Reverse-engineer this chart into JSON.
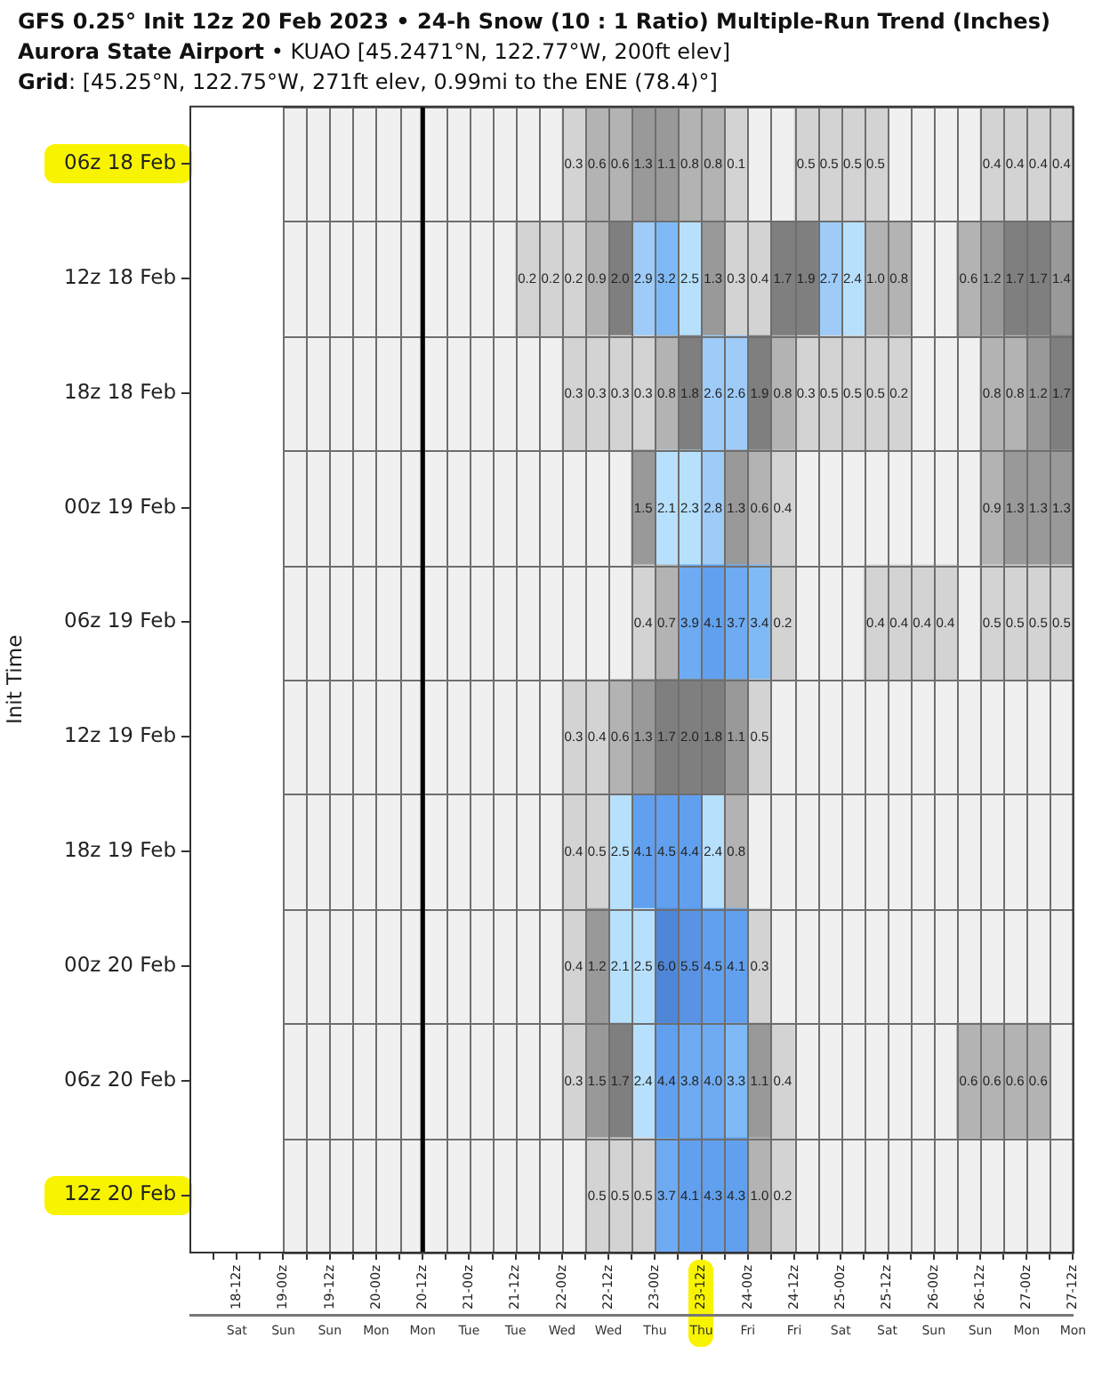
{
  "chart_data": {
    "type": "heatmap",
    "title": "GFS 0.25° Init 12z 20 Feb 2023 • 24-h Snow (10 : 1 Ratio) Multiple-Run Trend (Inches)",
    "subtitle": "Aurora State Airport • KUAO [45.2471°N, 122.77°W, 200ft elev]\nGrid: [45.25°N, 122.75°W, 271ft elev, 0.99mi to the ENE (78.4)°]",
    "annotations": [
      "Sat",
      "Sun",
      "Sun",
      "Mon",
      "Mon",
      "Tue",
      "Tue",
      "Wed",
      "Wed",
      "Thu",
      "Thu",
      "Fri",
      "Fri",
      "Sat",
      "Sat",
      "Sun",
      "Sun",
      "Mon",
      "Mon"
    ],
    "ylabel": "Init Time",
    "x": [
      "2023-02-19T03:00",
      "2023-02-19T09:00",
      "2023-02-19T15:00",
      "2023-02-19T21:00",
      "2023-02-20T03:00",
      "2023-02-20T09:00",
      "2023-02-20T15:00",
      "2023-02-20T21:00",
      "2023-02-21T03:00",
      "2023-02-21T09:00",
      "2023-02-21T15:00",
      "2023-02-21T21:00",
      "2023-02-22T03:00",
      "2023-02-22T09:00",
      "2023-02-22T15:00",
      "2023-02-22T21:00",
      "2023-02-23T03:00",
      "2023-02-23T09:00",
      "2023-02-23T15:00",
      "2023-02-23T21:00",
      "2023-02-24T03:00",
      "2023-02-24T09:00",
      "2023-02-24T15:00",
      "2023-02-24T21:00",
      "2023-02-25T03:00",
      "2023-02-25T09:00",
      "2023-02-25T15:00",
      "2023-02-25T21:00",
      "2023-02-26T03:00",
      "2023-02-26T09:00",
      "2023-02-26T15:00",
      "2023-02-26T21:00",
      "2023-02-27T03:00",
      "2023-02-27T09:00"
    ],
    "xlim": [
      "2023-02-18T00:00",
      "2023-02-27T12:00"
    ],
    "xticks": [
      {
        "value": "2023-02-18T06:00",
        "label": null
      },
      {
        "value": "2023-02-18T12:00",
        "label": "18-12z"
      },
      {
        "value": "2023-02-18T18:00",
        "label": null
      },
      {
        "value": "2023-02-19T00:00",
        "label": "19-00z"
      },
      {
        "value": "2023-02-19T06:00",
        "label": null
      },
      {
        "value": "2023-02-19T12:00",
        "label": "19-12z"
      },
      {
        "value": "2023-02-19T18:00",
        "label": null
      },
      {
        "value": "2023-02-20T00:00",
        "label": "20-00z"
      },
      {
        "value": "2023-02-20T06:00",
        "label": null
      },
      {
        "value": "2023-02-20T12:00",
        "label": "20-12z"
      },
      {
        "value": "2023-02-20T18:00",
        "label": null
      },
      {
        "value": "2023-02-21T00:00",
        "label": "21-00z"
      },
      {
        "value": "2023-02-21T06:00",
        "label": null
      },
      {
        "value": "2023-02-21T12:00",
        "label": "21-12z"
      },
      {
        "value": "2023-02-21T18:00",
        "label": null
      },
      {
        "value": "2023-02-22T00:00",
        "label": "22-00z"
      },
      {
        "value": "2023-02-22T06:00",
        "label": null
      },
      {
        "value": "2023-02-22T12:00",
        "label": "22-12z"
      },
      {
        "value": "2023-02-22T18:00",
        "label": null
      },
      {
        "value": "2023-02-23T00:00",
        "label": "23-00z"
      },
      {
        "value": "2023-02-23T06:00",
        "label": null
      },
      {
        "value": "2023-02-23T12:00",
        "label": "23-12z"
      },
      {
        "value": "2023-02-23T18:00",
        "label": null
      },
      {
        "value": "2023-02-24T00:00",
        "label": "24-00z"
      },
      {
        "value": "2023-02-24T06:00",
        "label": null
      },
      {
        "value": "2023-02-24T12:00",
        "label": "24-12z"
      },
      {
        "value": "2023-02-24T18:00",
        "label": null
      },
      {
        "value": "2023-02-25T00:00",
        "label": "25-00z"
      },
      {
        "value": "2023-02-25T06:00",
        "label": null
      },
      {
        "value": "2023-02-25T12:00",
        "label": "25-12z"
      },
      {
        "value": "2023-02-25T18:00",
        "label": null
      },
      {
        "value": "2023-02-26T00:00",
        "label": "26-00z"
      },
      {
        "value": "2023-02-26T06:00",
        "label": null
      },
      {
        "value": "2023-02-26T12:00",
        "label": "26-12z"
      },
      {
        "value": "2023-02-26T18:00",
        "label": null
      },
      {
        "value": "2023-02-27T00:00",
        "label": "27-00z"
      },
      {
        "value": "2023-02-27T06:00",
        "label": null
      },
      {
        "value": "2023-02-27T12:00",
        "label": "27-12z"
      }
    ],
    "y_categories": [
      "06z 18 Feb",
      "12z 18 Feb",
      "18z 18 Feb",
      "00z 19 Feb",
      "06z 19 Feb",
      "12z 19 Feb",
      "18z 19 Feb",
      "00z 20 Feb",
      "06z 20 Feb",
      "12z 20 Feb"
    ],
    "cells": [
      [
        null,
        null,
        null,
        null,
        null,
        null,
        null,
        null,
        null,
        null,
        null,
        null,
        0.3,
        0.6,
        0.6,
        1.3,
        1.1,
        0.8,
        0.8,
        0.1,
        null,
        null,
        0.5,
        0.5,
        0.5,
        0.5,
        null,
        null,
        null,
        null,
        0.4,
        0.4,
        0.4,
        0.4
      ],
      [
        null,
        null,
        null,
        null,
        null,
        null,
        null,
        null,
        null,
        null,
        0.2,
        0.2,
        0.2,
        0.9,
        2.0,
        2.9,
        3.2,
        2.5,
        1.3,
        0.3,
        0.4,
        1.7,
        1.9,
        2.7,
        2.4,
        1.0,
        0.8,
        null,
        null,
        0.6,
        1.2,
        1.7,
        1.7,
        1.4
      ],
      [
        null,
        null,
        null,
        null,
        null,
        null,
        null,
        null,
        null,
        null,
        null,
        null,
        0.3,
        0.3,
        0.3,
        0.3,
        0.8,
        1.8,
        2.6,
        2.6,
        1.9,
        0.8,
        0.3,
        0.5,
        0.5,
        0.5,
        0.2,
        null,
        null,
        null,
        0.8,
        0.8,
        1.2,
        1.7
      ],
      [
        null,
        null,
        null,
        null,
        null,
        null,
        null,
        null,
        null,
        null,
        null,
        null,
        null,
        null,
        null,
        1.5,
        2.1,
        2.3,
        2.8,
        1.3,
        0.6,
        0.4,
        null,
        null,
        null,
        null,
        null,
        null,
        null,
        null,
        0.9,
        1.3,
        1.3,
        1.3
      ],
      [
        null,
        null,
        null,
        null,
        null,
        null,
        null,
        null,
        null,
        null,
        null,
        null,
        null,
        null,
        null,
        0.4,
        0.7,
        3.9,
        4.1,
        3.7,
        3.4,
        0.2,
        null,
        null,
        null,
        0.4,
        0.4,
        0.4,
        0.4,
        null,
        0.5,
        0.5,
        0.5,
        0.5
      ],
      [
        null,
        null,
        null,
        null,
        null,
        null,
        null,
        null,
        null,
        null,
        null,
        null,
        0.3,
        0.4,
        0.6,
        1.3,
        1.7,
        2.0,
        1.8,
        1.1,
        0.5,
        null,
        null,
        null,
        null,
        null,
        null,
        null,
        null,
        null,
        null,
        null,
        null,
        null
      ],
      [
        null,
        null,
        null,
        null,
        null,
        null,
        null,
        null,
        null,
        null,
        null,
        null,
        0.4,
        0.5,
        2.5,
        4.1,
        4.5,
        4.4,
        2.4,
        0.8,
        null,
        null,
        null,
        null,
        null,
        null,
        null,
        null,
        null,
        null,
        null,
        null,
        null,
        null
      ],
      [
        null,
        null,
        null,
        null,
        null,
        null,
        null,
        null,
        null,
        null,
        null,
        null,
        0.4,
        1.2,
        2.1,
        2.5,
        6.0,
        5.5,
        4.5,
        4.1,
        0.3,
        null,
        null,
        null,
        null,
        null,
        null,
        null,
        null,
        null,
        null,
        null,
        null,
        null
      ],
      [
        null,
        null,
        null,
        null,
        null,
        null,
        null,
        null,
        null,
        null,
        null,
        null,
        0.3,
        1.5,
        1.7,
        2.4,
        4.4,
        3.8,
        4.0,
        3.3,
        1.1,
        0.4,
        null,
        null,
        null,
        null,
        null,
        null,
        null,
        0.6,
        0.6,
        0.6,
        0.6,
        null
      ],
      [
        null,
        null,
        null,
        null,
        null,
        null,
        null,
        null,
        null,
        null,
        null,
        null,
        null,
        0.5,
        0.5,
        0.5,
        3.7,
        4.1,
        4.3,
        4.3,
        1.0,
        0.2,
        null,
        null,
        null,
        null,
        null,
        null,
        null,
        null,
        null,
        null,
        null,
        null
      ]
    ],
    "cell_labels": [
      [
        null,
        null,
        null,
        null,
        null,
        null,
        null,
        null,
        null,
        null,
        null,
        null,
        "0.3",
        "0.6",
        "0.6",
        "1.3",
        "1.1",
        "0.8",
        "0.8",
        "0.1",
        null,
        null,
        "0.5",
        "0.5",
        "0.5",
        "0.5",
        null,
        null,
        null,
        null,
        "0.4",
        "0.4",
        "0.4",
        "0.4"
      ],
      [
        null,
        null,
        null,
        null,
        null,
        null,
        null,
        null,
        null,
        null,
        "0.2",
        "0.2",
        "0.2",
        "0.9",
        "2.0",
        "2.9",
        "3.2",
        "2.5",
        "1.3",
        "0.3",
        "0.4",
        "1.7",
        "1.9",
        "2.7",
        "2.4",
        "1.0",
        "0.8",
        null,
        null,
        "0.6",
        "1.2",
        "1.7",
        "1.7",
        "1.4"
      ],
      [
        null,
        null,
        null,
        null,
        null,
        null,
        null,
        null,
        null,
        null,
        null,
        null,
        "0.3",
        "0.3",
        "0.3",
        "0.3",
        "0.8",
        "1.8",
        "2.6",
        "2.6",
        "1.9",
        "0.8",
        "0.3",
        "0.5",
        "0.5",
        "0.5",
        "0.2",
        null,
        null,
        null,
        "0.8",
        "0.8",
        "1.2",
        "1.7"
      ],
      [
        null,
        null,
        null,
        null,
        null,
        null,
        null,
        null,
        null,
        null,
        null,
        null,
        null,
        null,
        null,
        "1.5",
        "2.1",
        "2.3",
        "2.8",
        "1.3",
        "0.6",
        "0.4",
        null,
        null,
        null,
        null,
        null,
        null,
        null,
        null,
        "0.9",
        "1.3",
        "1.3",
        "1.3"
      ],
      [
        null,
        null,
        null,
        null,
        null,
        null,
        null,
        null,
        null,
        null,
        null,
        null,
        null,
        null,
        null,
        "0.4",
        "0.7",
        "3.9",
        "4.1",
        "3.7",
        "3.4",
        "0.2",
        null,
        null,
        null,
        "0.4",
        "0.4",
        "0.4",
        "0.4",
        null,
        "0.5",
        "0.5",
        "0.5",
        "0.5"
      ],
      [
        null,
        null,
        null,
        null,
        null,
        null,
        null,
        null,
        null,
        null,
        null,
        null,
        "0.3",
        "0.4",
        "0.6",
        "1.3",
        "1.7",
        "2.0",
        "1.8",
        "1.1",
        "0.5",
        null,
        null,
        null,
        null,
        null,
        null,
        null,
        null,
        null,
        null,
        null,
        null,
        null
      ],
      [
        null,
        null,
        null,
        null,
        null,
        null,
        null,
        null,
        null,
        null,
        null,
        null,
        "0.4",
        "0.5",
        "2.5",
        "4.1",
        "4.5",
        "4.4",
        "2.4",
        "0.8",
        null,
        null,
        null,
        null,
        null,
        null,
        null,
        null,
        null,
        null,
        null,
        null,
        null,
        null
      ],
      [
        null,
        null,
        null,
        null,
        null,
        null,
        null,
        null,
        null,
        null,
        null,
        null,
        "0.4",
        "1.2",
        "2.1",
        "2.5",
        "6.0",
        "5.5",
        "4.5",
        "4.1",
        "0.3",
        null,
        null,
        null,
        null,
        null,
        null,
        null,
        null,
        null,
        null,
        null,
        null,
        null
      ],
      [
        null,
        null,
        null,
        null,
        null,
        null,
        null,
        null,
        null,
        null,
        null,
        null,
        "0.3",
        "1.5",
        "1.7",
        "2.4",
        "4.4",
        "3.8",
        "4.0",
        "3.3",
        "1.1",
        "0.4",
        null,
        null,
        null,
        null,
        null,
        null,
        null,
        "0.6",
        "0.6",
        "0.6",
        "0.6",
        null
      ],
      [
        null,
        null,
        null,
        null,
        null,
        null,
        null,
        null,
        null,
        null,
        null,
        null,
        null,
        "0.5",
        "0.5",
        "0.5",
        "3.7",
        "4.1",
        "4.3",
        "4.3",
        "1.0",
        "0.2",
        null,
        null,
        null,
        null,
        null,
        null,
        null,
        null,
        null,
        null,
        null,
        null
      ]
    ],
    "ref_lines": [
      {
        "axis": "x",
        "value": "2023-02-20T12:00",
        "color": "#000000"
      }
    ]
  }
}
